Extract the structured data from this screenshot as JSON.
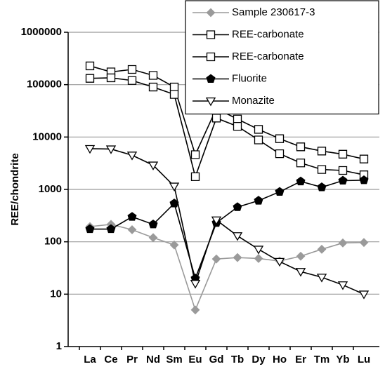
{
  "chart_data": {
    "type": "line",
    "y_label": "REE/chondrite",
    "categories": [
      "La",
      "Ce",
      "Pr",
      "Nd",
      "Sm",
      "Eu",
      "Gd",
      "Tb",
      "Dy",
      "Ho",
      "Er",
      "Tm",
      "Yb",
      "Lu"
    ],
    "log_y": true,
    "grid": true,
    "legend": "upper right",
    "ylim": [
      1,
      1000000
    ],
    "yticks": [
      1,
      10,
      100,
      1000,
      10000,
      100000,
      1000000
    ],
    "series": [
      {
        "name": "Sample 230617-3",
        "color": "#9a9a9a",
        "marker": "diamond",
        "values": [
          195,
          215,
          170,
          120,
          87,
          5,
          47,
          50,
          48,
          43,
          53,
          72,
          95,
          97
        ]
      },
      {
        "name": "REE-carbonate",
        "color": "#000000",
        "marker": "square",
        "values": [
          228000,
          175000,
          195000,
          150000,
          90000,
          4600,
          35000,
          22000,
          14000,
          9300,
          6500,
          5400,
          4700,
          3800
        ]
      },
      {
        "name": "REE-carbonate",
        "color": "#000000",
        "marker": "square",
        "values": [
          132000,
          135000,
          120000,
          90000,
          65000,
          1750,
          23000,
          16000,
          8800,
          4800,
          3200,
          2400,
          2300,
          1900
        ]
      },
      {
        "name": "Fluorite",
        "color": "#000000",
        "marker": "pentagon",
        "values": [
          175,
          175,
          300,
          215,
          540,
          20,
          230,
          460,
          610,
          900,
          1420,
          1100,
          1470,
          1500
        ]
      },
      {
        "name": "Monazite",
        "color": "#000000",
        "marker": "triangle-down",
        "values": [
          6000,
          5900,
          4500,
          2900,
          1150,
          16,
          260,
          130,
          72,
          42,
          27,
          21,
          15,
          10
        ]
      }
    ]
  }
}
